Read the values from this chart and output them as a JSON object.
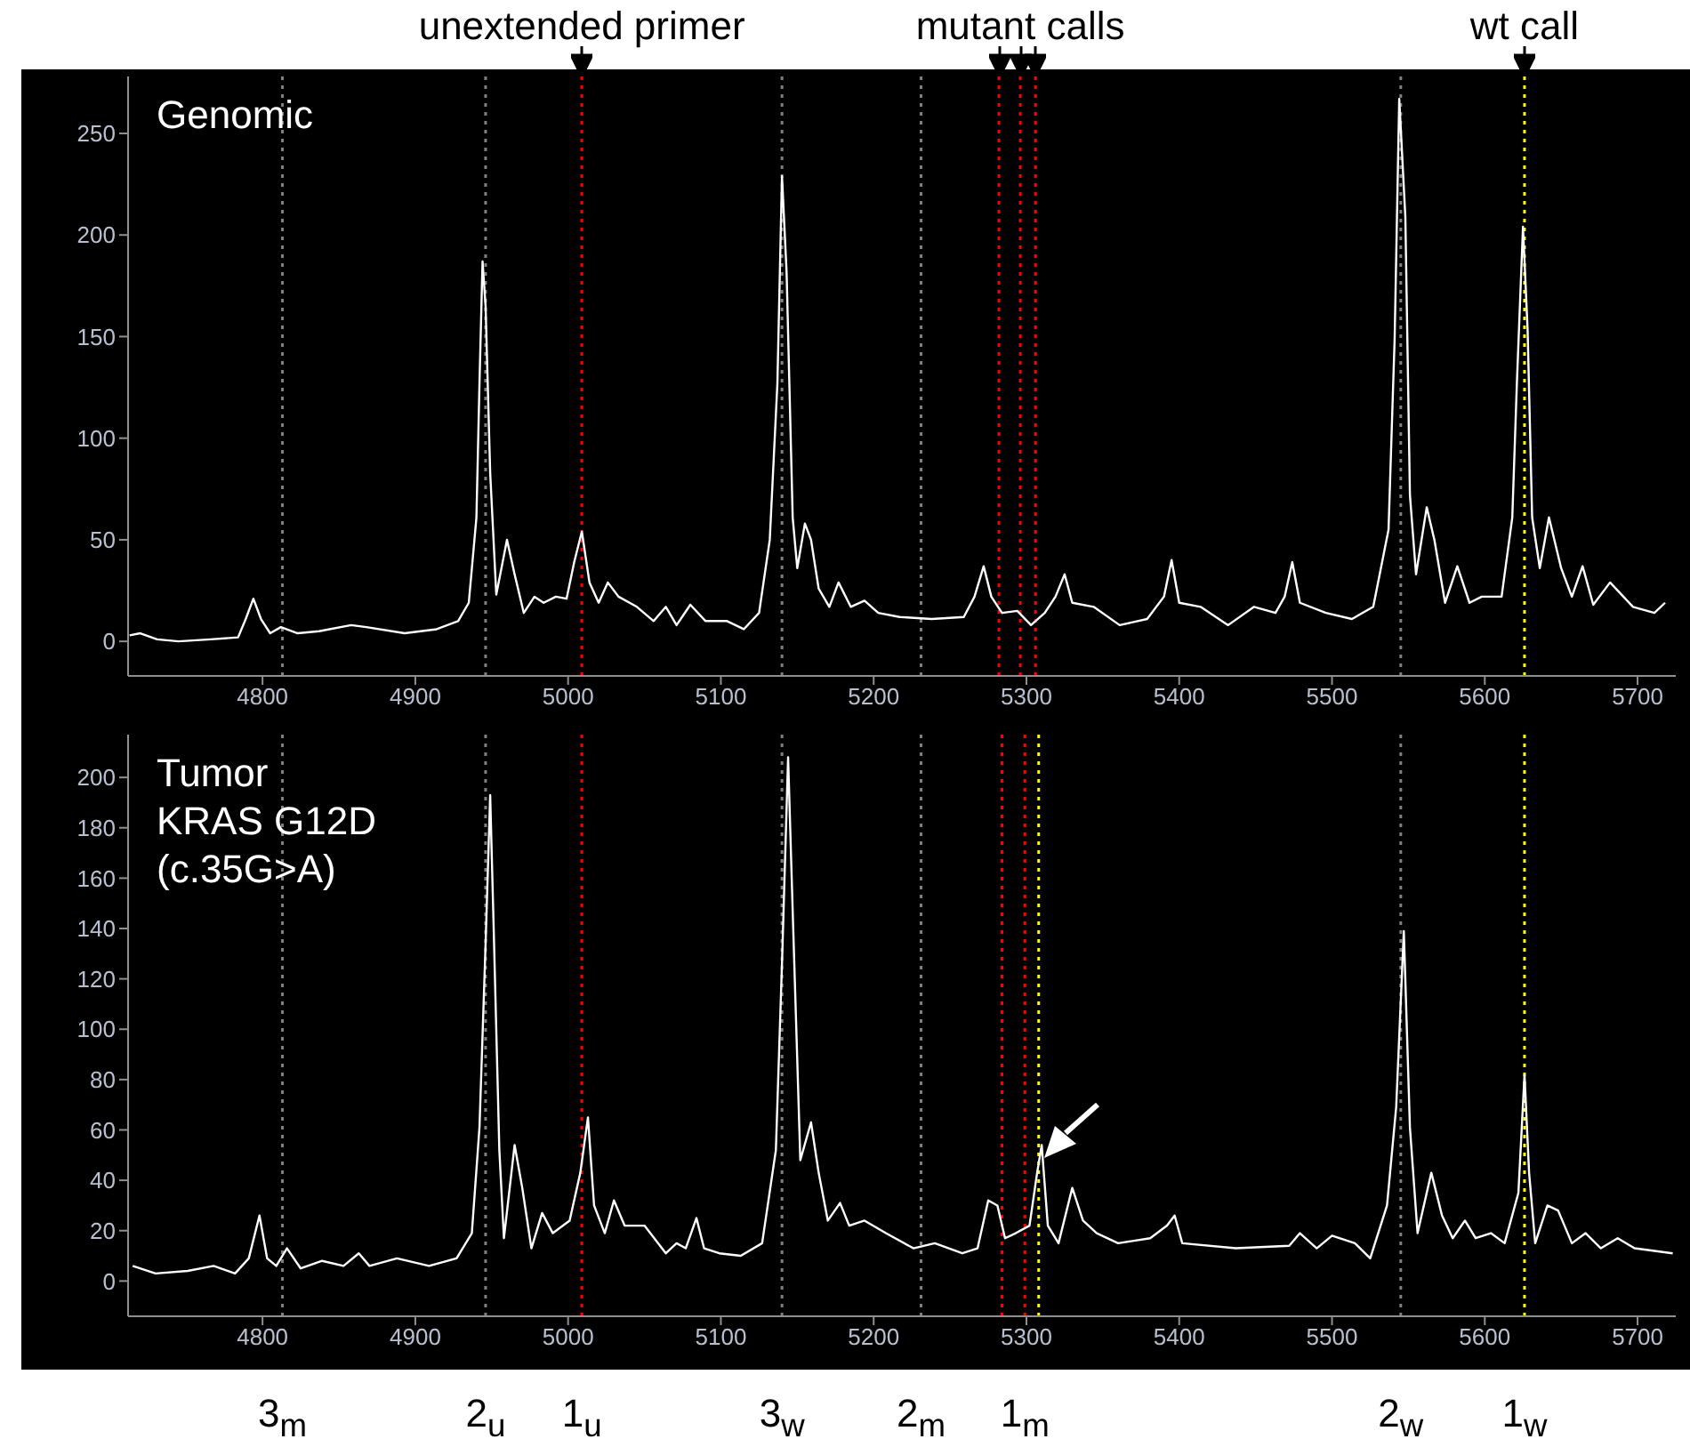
{
  "chart_data": [
    {
      "type": "line",
      "title": "Genomic",
      "xlim": [
        4712,
        5725
      ],
      "xticks": [
        4800,
        4900,
        5000,
        5100,
        5200,
        5300,
        5400,
        5500,
        5600,
        5700
      ],
      "ylim": [
        -17,
        278
      ],
      "yticks": [
        0,
        50,
        100,
        150,
        200,
        250
      ],
      "x": [
        4713,
        4720,
        4731,
        4745,
        4766,
        4784,
        4789,
        4794,
        4799,
        4805,
        4812,
        4823,
        4837,
        4858,
        4868,
        4893,
        4914,
        4928,
        4935,
        4940,
        4942,
        4944,
        4946,
        4949,
        4953,
        4960,
        4965,
        4971,
        4978,
        4984,
        4992,
        4999,
        5004,
        5009,
        5014,
        5020,
        5026,
        5033,
        5045,
        5056,
        5064,
        5071,
        5080,
        5090,
        5104,
        5115,
        5125,
        5132,
        5137,
        5140,
        5143,
        5147,
        5150,
        5155,
        5159,
        5164,
        5171,
        5177,
        5185,
        5194,
        5203,
        5217,
        5238,
        5259,
        5266,
        5272,
        5277,
        5284,
        5294,
        5303,
        5312,
        5319,
        5325,
        5330,
        5344,
        5361,
        5379,
        5390,
        5395,
        5400,
        5414,
        5432,
        5449,
        5463,
        5469,
        5474,
        5479,
        5496,
        5513,
        5527,
        5537,
        5541,
        5544,
        5548,
        5551,
        5555,
        5562,
        5567,
        5574,
        5582,
        5590,
        5598,
        5611,
        5618,
        5621,
        5625,
        5628,
        5631,
        5636,
        5642,
        5650,
        5657,
        5664,
        5671,
        5682,
        5697,
        5711,
        5718
      ],
      "series": [
        {
          "color": "#ffffff",
          "values": [
            3,
            4,
            1,
            0,
            1,
            2,
            11,
            21,
            11,
            4,
            7,
            4,
            5,
            8,
            7,
            4,
            6,
            10,
            19,
            61,
            127,
            187,
            165,
            83,
            23,
            50,
            33,
            14,
            22,
            19,
            22,
            21,
            39,
            54,
            29,
            19,
            29,
            22,
            17,
            10,
            17,
            8,
            18,
            10,
            10,
            6,
            14,
            50,
            127,
            229,
            182,
            61,
            36,
            58,
            50,
            26,
            17,
            29,
            17,
            20,
            14,
            12,
            11,
            12,
            22,
            37,
            22,
            14,
            15,
            8,
            14,
            22,
            33,
            19,
            17,
            8,
            11,
            22,
            40,
            19,
            17,
            8,
            17,
            14,
            22,
            39,
            19,
            14,
            11,
            17,
            55,
            149,
            267,
            209,
            72,
            33,
            66,
            50,
            19,
            37,
            19,
            22,
            22,
            61,
            127,
            204,
            154,
            61,
            36,
            61,
            36,
            22,
            37,
            18,
            29,
            17,
            14,
            19
          ]
        }
      ],
      "ref_lines": [
        {
          "axis": "x",
          "value": 4813,
          "color": "#808080",
          "line_style": "dotted"
        },
        {
          "axis": "x",
          "value": 4946,
          "color": "#808080",
          "line_style": "dotted"
        },
        {
          "axis": "x",
          "value": 5009,
          "color": "#ff0000",
          "line_style": "dotted",
          "label": "unextended primer"
        },
        {
          "axis": "x",
          "value": 5140,
          "color": "#808080",
          "line_style": "dotted"
        },
        {
          "axis": "x",
          "value": 5231,
          "color": "#808080",
          "line_style": "dotted"
        },
        {
          "axis": "x",
          "value": 5282,
          "color": "#ff0000",
          "line_style": "dotted"
        },
        {
          "axis": "x",
          "value": 5296,
          "color": "#ff0000",
          "line_style": "dotted",
          "label": "mutant calls"
        },
        {
          "axis": "x",
          "value": 5306,
          "color": "#ff0000",
          "line_style": "dotted"
        },
        {
          "axis": "x",
          "value": 5545,
          "color": "#808080",
          "line_style": "dotted"
        },
        {
          "axis": "x",
          "value": 5626,
          "color": "#ffff00",
          "line_style": "dotted",
          "label": "wt call"
        }
      ]
    },
    {
      "type": "line",
      "title": "Tumor",
      "subtitle": "KRAS G12D (c.35G>A)",
      "xlim": [
        4712,
        5725
      ],
      "xticks": [
        4800,
        4900,
        5000,
        5100,
        5200,
        5300,
        5400,
        5500,
        5600,
        5700
      ],
      "ylim": [
        -14,
        217
      ],
      "yticks": [
        0,
        20,
        40,
        60,
        80,
        100,
        120,
        140,
        160,
        180,
        200
      ],
      "x": [
        4715,
        4730,
        4751,
        4768,
        4782,
        4791,
        4798,
        4803,
        4809,
        4816,
        4825,
        4839,
        4853,
        4863,
        4870,
        4888,
        4909,
        4927,
        4937,
        4942,
        4946,
        4949,
        4951,
        4955,
        4958,
        4965,
        4970,
        4976,
        4983,
        4990,
        5001,
        5008,
        5013,
        5017,
        5024,
        5030,
        5037,
        5050,
        5064,
        5071,
        5077,
        5084,
        5089,
        5099,
        5113,
        5127,
        5136,
        5140,
        5144,
        5147,
        5152,
        5159,
        5164,
        5170,
        5178,
        5184,
        5194,
        5208,
        5226,
        5240,
        5258,
        5268,
        5275,
        5281,
        5286,
        5293,
        5302,
        5307,
        5310,
        5314,
        5321,
        5330,
        5337,
        5346,
        5360,
        5381,
        5392,
        5397,
        5402,
        5437,
        5472,
        5479,
        5490,
        5500,
        5515,
        5525,
        5536,
        5542,
        5547,
        5551,
        5556,
        5565,
        5572,
        5579,
        5587,
        5594,
        5604,
        5613,
        5622,
        5626,
        5629,
        5633,
        5641,
        5648,
        5657,
        5666,
        5676,
        5687,
        5698,
        5723
      ],
      "series": [
        {
          "color": "#ffffff",
          "values": [
            6,
            3,
            4,
            6,
            3,
            9,
            26,
            9,
            6,
            13,
            5,
            8,
            6,
            11,
            6,
            9,
            6,
            9,
            19,
            61,
            134,
            193,
            147,
            52,
            17,
            54,
            37,
            13,
            27,
            19,
            24,
            43,
            65,
            30,
            19,
            32,
            22,
            22,
            11,
            15,
            13,
            25,
            13,
            11,
            10,
            15,
            52,
            126,
            208,
            147,
            48,
            63,
            43,
            24,
            31,
            22,
            24,
            19,
            13,
            15,
            11,
            13,
            32,
            30,
            17,
            19,
            22,
            43,
            54,
            22,
            15,
            37,
            24,
            19,
            15,
            17,
            22,
            26,
            15,
            13,
            14,
            19,
            13,
            18,
            15,
            9,
            30,
            69,
            139,
            61,
            19,
            43,
            26,
            17,
            24,
            17,
            19,
            15,
            35,
            82,
            43,
            15,
            30,
            28,
            15,
            19,
            13,
            17,
            13,
            11
          ]
        }
      ],
      "ref_lines": [
        {
          "axis": "x",
          "value": 4813,
          "color": "#808080",
          "line_style": "dotted",
          "label": "3$_{m}$"
        },
        {
          "axis": "x",
          "value": 4946,
          "color": "#808080",
          "line_style": "dotted",
          "label": "2$_{u}$"
        },
        {
          "axis": "x",
          "value": 5009,
          "color": "#ff0000",
          "line_style": "dotted",
          "label": "1$_{u}$"
        },
        {
          "axis": "x",
          "value": 5140,
          "color": "#808080",
          "line_style": "dotted",
          "label": "3$_{w}$"
        },
        {
          "axis": "x",
          "value": 5231,
          "color": "#808080",
          "line_style": "dotted",
          "label": "2$_{m}$"
        },
        {
          "axis": "x",
          "value": 5284,
          "color": "#ff0000",
          "line_style": "dotted"
        },
        {
          "axis": "x",
          "value": 5299,
          "color": "#ff0000",
          "line_style": "dotted",
          "label": "1$_{m}$"
        },
        {
          "axis": "x",
          "value": 5308,
          "color": "#ffff00",
          "line_style": "dotted"
        },
        {
          "axis": "x",
          "value": 5545,
          "color": "#808080",
          "line_style": "dotted",
          "label": "2$_{w}$"
        },
        {
          "axis": "x",
          "value": 5626,
          "color": "#ffff00",
          "line_style": "dotted",
          "label": "1$_{w}$"
        }
      ]
    }
  ]
}
